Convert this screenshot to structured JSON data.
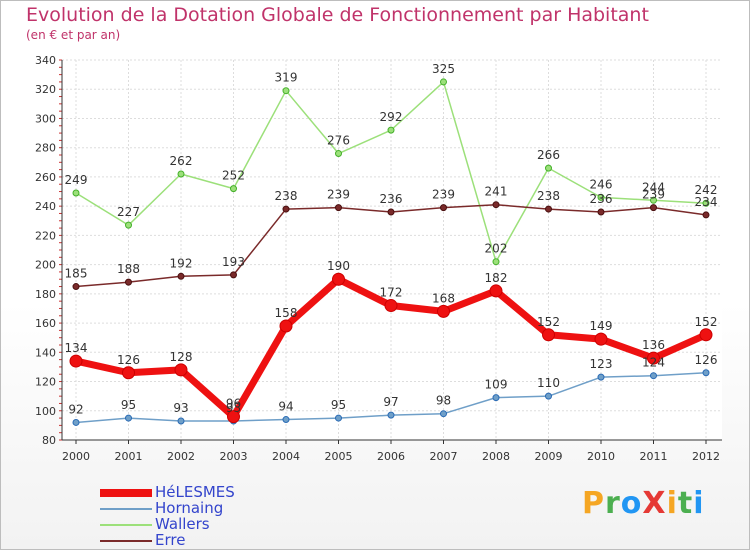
{
  "page": {
    "title": "Evolution de la Dotation Globale de Fonctionnement par Habitant",
    "subtitle": "(en € et par an)",
    "brand": "ProXiti",
    "brand_colors": [
      "#f5a623",
      "#4caf50",
      "#2196f3",
      "#e53935",
      "#f5a623",
      "#4caf50",
      "#2196f3"
    ]
  },
  "chart_data": {
    "type": "line",
    "title": "Evolution de la Dotation Globale de Fonctionnement par Habitant",
    "subtitle": "(en € et par an)",
    "xlabel": "",
    "ylabel": "",
    "x": [
      "2000",
      "2001",
      "2002",
      "2003",
      "2004",
      "2005",
      "2006",
      "2007",
      "2008",
      "2009",
      "2010",
      "2011",
      "2012"
    ],
    "ylim": [
      80,
      340
    ],
    "yticks": [
      80,
      100,
      120,
      140,
      160,
      180,
      200,
      220,
      240,
      260,
      280,
      300,
      320,
      340
    ],
    "grid": true,
    "legend_position": "bottom-left",
    "series": [
      {
        "name": "HéLESMES",
        "color": "#ee1111",
        "marker_edge": "#cc0000",
        "values": [
          134,
          126,
          128,
          96,
          158,
          190,
          172,
          168,
          182,
          152,
          149,
          136,
          152
        ]
      },
      {
        "name": "Hornaing",
        "color": "#6f9fc8",
        "marker_edge": "#2a6bb5",
        "values": [
          92,
          95,
          93,
          93,
          94,
          95,
          97,
          98,
          109,
          110,
          123,
          124,
          126
        ]
      },
      {
        "name": "Wallers",
        "color": "#9ce07a",
        "marker_edge": "#44b02a",
        "values": [
          249,
          227,
          262,
          252,
          319,
          276,
          292,
          325,
          202,
          266,
          246,
          244,
          242
        ]
      },
      {
        "name": "Erre",
        "color": "#7a2a2a",
        "marker_edge": "#4a1010",
        "values": [
          185,
          188,
          192,
          193,
          238,
          239,
          236,
          239,
          241,
          238,
          236,
          239,
          234
        ]
      }
    ]
  }
}
